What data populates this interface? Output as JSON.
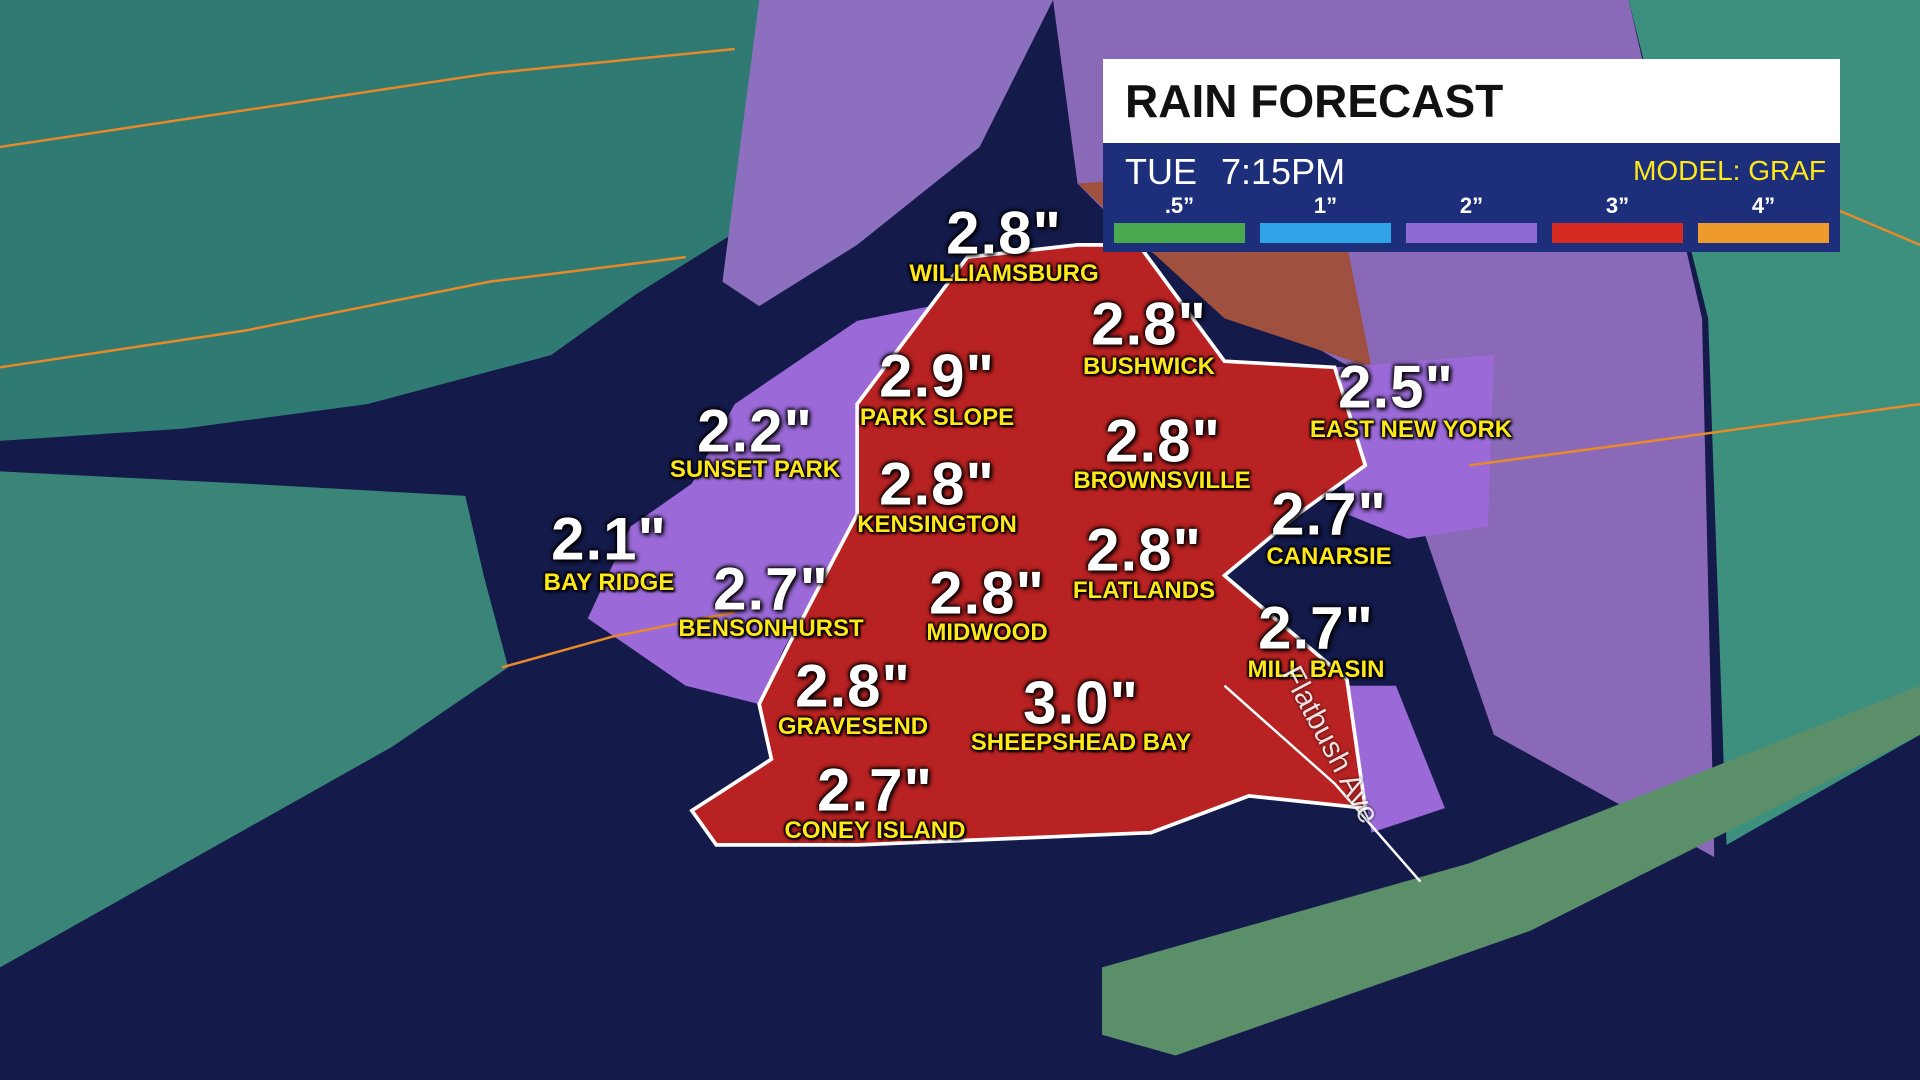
{
  "header": {
    "title": "RAIN FORECAST",
    "day": "TUE",
    "time": "7:15PM",
    "model": "MODEL: GRAF"
  },
  "legend": [
    {
      "label": ".5”",
      "color": "#4aa84f"
    },
    {
      "label": "1”",
      "color": "#2fa3e6"
    },
    {
      "label": "2”",
      "color": "#8d6ad6"
    },
    {
      "label": "3”",
      "color": "#d42a22"
    },
    {
      "label": "4”",
      "color": "#ef9a2c"
    }
  ],
  "locations": [
    {
      "amount": "2.8\"",
      "name": "WILLIAMSBURG"
    },
    {
      "amount": "2.8\"",
      "name": "BUSHWICK"
    },
    {
      "amount": "2.9\"",
      "name": "PARK SLOPE"
    },
    {
      "amount": "2.2\"",
      "name": "SUNSET PARK"
    },
    {
      "amount": "2.5\"",
      "name": "EAST NEW YORK"
    },
    {
      "amount": "2.8\"",
      "name": "BROWNSVILLE"
    },
    {
      "amount": "2.8\"",
      "name": "KENSINGTON"
    },
    {
      "amount": "2.1\"",
      "name": "BAY RIDGE"
    },
    {
      "amount": "2.7\"",
      "name": "CANARSIE"
    },
    {
      "amount": "2.8\"",
      "name": "FLATLANDS"
    },
    {
      "amount": "2.7\"",
      "name": "BENSONHURST"
    },
    {
      "amount": "2.8\"",
      "name": "MIDWOOD"
    },
    {
      "amount": "2.7\"",
      "name": "MILL BASIN"
    },
    {
      "amount": "2.8\"",
      "name": "GRAVESEND"
    },
    {
      "amount": "3.0\"",
      "name": "SHEEPSHEAD BAY"
    },
    {
      "amount": "2.7\"",
      "name": "CONEY ISLAND"
    }
  ],
  "street_label": "Flatbush Ave"
}
